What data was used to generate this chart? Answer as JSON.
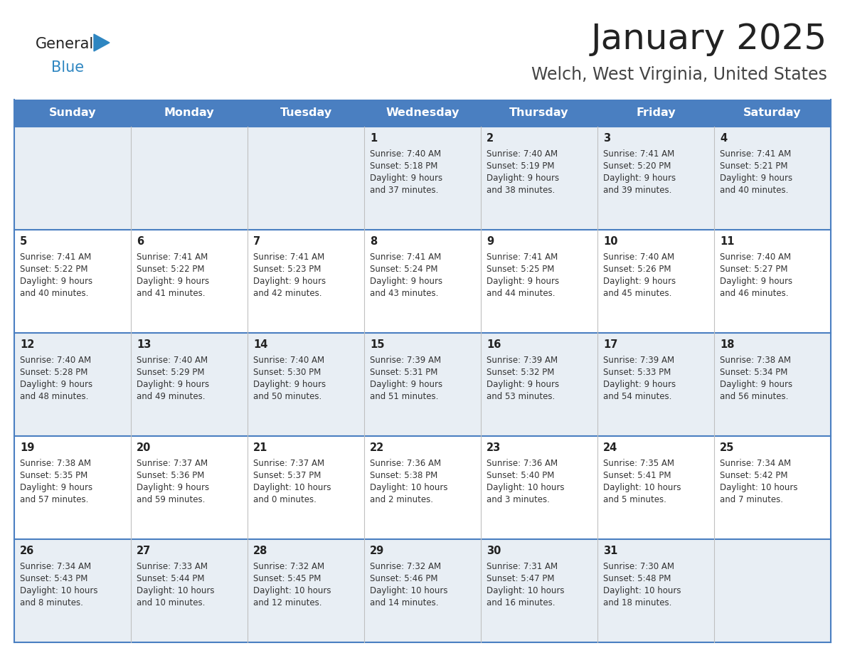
{
  "title": "January 2025",
  "subtitle": "Welch, West Virginia, United States",
  "header_bg": "#4a7fc1",
  "header_text": "#ffffff",
  "row_bg_light": "#e8eef4",
  "row_bg_white": "#ffffff",
  "cell_border_color": "#4a7fc1",
  "cell_divider_color": "#c0c0c0",
  "day_headers": [
    "Sunday",
    "Monday",
    "Tuesday",
    "Wednesday",
    "Thursday",
    "Friday",
    "Saturday"
  ],
  "title_color": "#222222",
  "subtitle_color": "#444444",
  "day_number_color": "#222222",
  "cell_text_color": "#333333",
  "logo_black": "#222222",
  "logo_blue": "#2e86c1",
  "logo_triangle": "#2e86c1",
  "calendar": [
    [
      null,
      null,
      null,
      {
        "day": 1,
        "sunrise": "7:40 AM",
        "sunset": "5:18 PM",
        "daylight": "9 hours and 37 minutes."
      },
      {
        "day": 2,
        "sunrise": "7:40 AM",
        "sunset": "5:19 PM",
        "daylight": "9 hours and 38 minutes."
      },
      {
        "day": 3,
        "sunrise": "7:41 AM",
        "sunset": "5:20 PM",
        "daylight": "9 hours and 39 minutes."
      },
      {
        "day": 4,
        "sunrise": "7:41 AM",
        "sunset": "5:21 PM",
        "daylight": "9 hours and 40 minutes."
      }
    ],
    [
      {
        "day": 5,
        "sunrise": "7:41 AM",
        "sunset": "5:22 PM",
        "daylight": "9 hours and 40 minutes."
      },
      {
        "day": 6,
        "sunrise": "7:41 AM",
        "sunset": "5:22 PM",
        "daylight": "9 hours and 41 minutes."
      },
      {
        "day": 7,
        "sunrise": "7:41 AM",
        "sunset": "5:23 PM",
        "daylight": "9 hours and 42 minutes."
      },
      {
        "day": 8,
        "sunrise": "7:41 AM",
        "sunset": "5:24 PM",
        "daylight": "9 hours and 43 minutes."
      },
      {
        "day": 9,
        "sunrise": "7:41 AM",
        "sunset": "5:25 PM",
        "daylight": "9 hours and 44 minutes."
      },
      {
        "day": 10,
        "sunrise": "7:40 AM",
        "sunset": "5:26 PM",
        "daylight": "9 hours and 45 minutes."
      },
      {
        "day": 11,
        "sunrise": "7:40 AM",
        "sunset": "5:27 PM",
        "daylight": "9 hours and 46 minutes."
      }
    ],
    [
      {
        "day": 12,
        "sunrise": "7:40 AM",
        "sunset": "5:28 PM",
        "daylight": "9 hours and 48 minutes."
      },
      {
        "day": 13,
        "sunrise": "7:40 AM",
        "sunset": "5:29 PM",
        "daylight": "9 hours and 49 minutes."
      },
      {
        "day": 14,
        "sunrise": "7:40 AM",
        "sunset": "5:30 PM",
        "daylight": "9 hours and 50 minutes."
      },
      {
        "day": 15,
        "sunrise": "7:39 AM",
        "sunset": "5:31 PM",
        "daylight": "9 hours and 51 minutes."
      },
      {
        "day": 16,
        "sunrise": "7:39 AM",
        "sunset": "5:32 PM",
        "daylight": "9 hours and 53 minutes."
      },
      {
        "day": 17,
        "sunrise": "7:39 AM",
        "sunset": "5:33 PM",
        "daylight": "9 hours and 54 minutes."
      },
      {
        "day": 18,
        "sunrise": "7:38 AM",
        "sunset": "5:34 PM",
        "daylight": "9 hours and 56 minutes."
      }
    ],
    [
      {
        "day": 19,
        "sunrise": "7:38 AM",
        "sunset": "5:35 PM",
        "daylight": "9 hours and 57 minutes."
      },
      {
        "day": 20,
        "sunrise": "7:37 AM",
        "sunset": "5:36 PM",
        "daylight": "9 hours and 59 minutes."
      },
      {
        "day": 21,
        "sunrise": "7:37 AM",
        "sunset": "5:37 PM",
        "daylight": "10 hours and 0 minutes."
      },
      {
        "day": 22,
        "sunrise": "7:36 AM",
        "sunset": "5:38 PM",
        "daylight": "10 hours and 2 minutes."
      },
      {
        "day": 23,
        "sunrise": "7:36 AM",
        "sunset": "5:40 PM",
        "daylight": "10 hours and 3 minutes."
      },
      {
        "day": 24,
        "sunrise": "7:35 AM",
        "sunset": "5:41 PM",
        "daylight": "10 hours and 5 minutes."
      },
      {
        "day": 25,
        "sunrise": "7:34 AM",
        "sunset": "5:42 PM",
        "daylight": "10 hours and 7 minutes."
      }
    ],
    [
      {
        "day": 26,
        "sunrise": "7:34 AM",
        "sunset": "5:43 PM",
        "daylight": "10 hours and 8 minutes."
      },
      {
        "day": 27,
        "sunrise": "7:33 AM",
        "sunset": "5:44 PM",
        "daylight": "10 hours and 10 minutes."
      },
      {
        "day": 28,
        "sunrise": "7:32 AM",
        "sunset": "5:45 PM",
        "daylight": "10 hours and 12 minutes."
      },
      {
        "day": 29,
        "sunrise": "7:32 AM",
        "sunset": "5:46 PM",
        "daylight": "10 hours and 14 minutes."
      },
      {
        "day": 30,
        "sunrise": "7:31 AM",
        "sunset": "5:47 PM",
        "daylight": "10 hours and 16 minutes."
      },
      {
        "day": 31,
        "sunrise": "7:30 AM",
        "sunset": "5:48 PM",
        "daylight": "10 hours and 18 minutes."
      },
      null
    ]
  ]
}
